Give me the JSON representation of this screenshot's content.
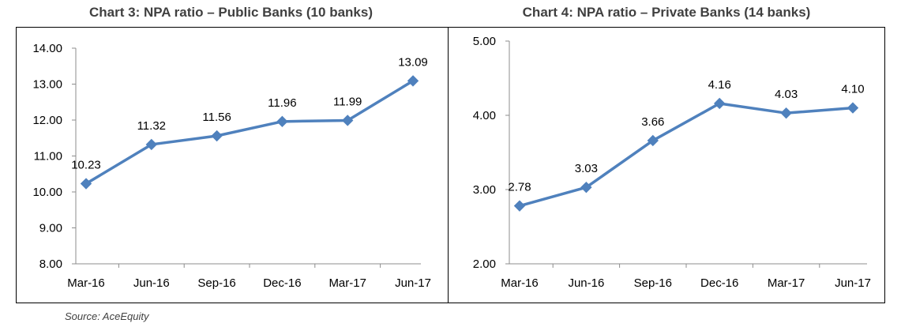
{
  "source": "Source: AceEquity",
  "chart_data": [
    {
      "type": "line",
      "title": "Chart 3: NPA ratio – Public Banks (10 banks)",
      "categories": [
        "Mar-16",
        "Jun-16",
        "Sep-16",
        "Dec-16",
        "Mar-17",
        "Jun-17"
      ],
      "values": [
        10.23,
        11.32,
        11.56,
        11.96,
        11.99,
        13.09
      ],
      "labels": [
        "10.23",
        "11.32",
        "11.56",
        "11.96",
        "11.99",
        "13.09"
      ],
      "yticks": [
        "8.00",
        "9.00",
        "10.00",
        "11.00",
        "12.00",
        "13.00",
        "14.00"
      ],
      "ylim": [
        8,
        14
      ],
      "ystep": 1,
      "xlabel": "",
      "ylabel": "",
      "grid": false,
      "color": "#4f81bd"
    },
    {
      "type": "line",
      "title": "Chart 4: NPA ratio – Private Banks (14 banks)",
      "categories": [
        "Mar-16",
        "Jun-16",
        "Sep-16",
        "Dec-16",
        "Mar-17",
        "Jun-17"
      ],
      "values": [
        2.78,
        3.03,
        3.66,
        4.16,
        4.03,
        4.1
      ],
      "labels": [
        "2.78",
        "3.03",
        "3.66",
        "4.16",
        "4.03",
        "4.10"
      ],
      "yticks": [
        "2.00",
        "3.00",
        "4.00",
        "5.00"
      ],
      "ylim": [
        2,
        5
      ],
      "ystep": 1,
      "xlabel": "",
      "ylabel": "",
      "grid": false,
      "color": "#4f81bd"
    }
  ]
}
